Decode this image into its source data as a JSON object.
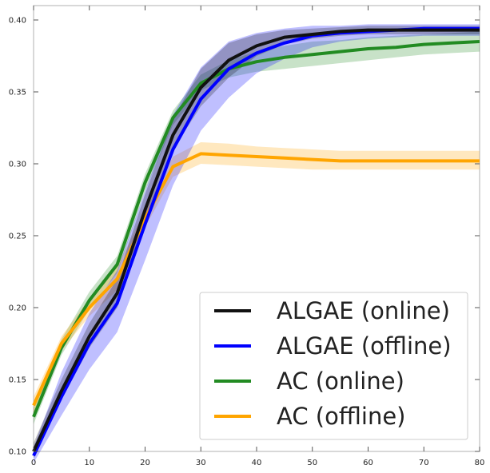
{
  "chart_data": {
    "type": "line",
    "title": "",
    "xlabel": "",
    "ylabel": "",
    "xlim": [
      0,
      80
    ],
    "ylim": [
      0.1,
      0.41
    ],
    "xticks": [
      0,
      10,
      20,
      30,
      40,
      50,
      60,
      70,
      80
    ],
    "yticks": [
      0.1,
      0.15,
      0.2,
      0.25,
      0.3,
      0.35,
      0.4
    ],
    "xtick_labels": [
      "0",
      "10",
      "20",
      "30",
      "40",
      "50",
      "60",
      "70",
      "80"
    ],
    "ytick_labels": [
      "0.10",
      "0.15",
      "0.20",
      "0.25",
      "0.30",
      "0.35",
      "0.40"
    ],
    "grid": false,
    "legend_position": "bottom-right",
    "x": [
      0,
      5,
      10,
      15,
      20,
      25,
      30,
      35,
      40,
      45,
      50,
      55,
      60,
      65,
      70,
      75,
      80
    ],
    "series": [
      {
        "name": "ALGAE (online)",
        "color": "#111111",
        "values": [
          0.1,
          0.142,
          0.18,
          0.21,
          0.268,
          0.32,
          0.353,
          0.372,
          0.382,
          0.388,
          0.39,
          0.392,
          0.393,
          0.393,
          0.393,
          0.393,
          0.393
        ],
        "lower": [
          0.095,
          0.136,
          0.172,
          0.2,
          0.258,
          0.31,
          0.34,
          0.36,
          0.375,
          0.383,
          0.387,
          0.389,
          0.39,
          0.39,
          0.39,
          0.39,
          0.39
        ],
        "upper": [
          0.106,
          0.15,
          0.189,
          0.22,
          0.279,
          0.331,
          0.366,
          0.384,
          0.39,
          0.393,
          0.394,
          0.395,
          0.396,
          0.396,
          0.396,
          0.396,
          0.396
        ]
      },
      {
        "name": "ALGAE (offline)",
        "color": "#0000ff",
        "values": [
          0.097,
          0.138,
          0.175,
          0.203,
          0.258,
          0.31,
          0.345,
          0.366,
          0.377,
          0.384,
          0.389,
          0.391,
          0.392,
          0.393,
          0.394,
          0.394,
          0.394
        ],
        "lower": [
          0.092,
          0.125,
          0.157,
          0.183,
          0.233,
          0.285,
          0.323,
          0.346,
          0.363,
          0.373,
          0.381,
          0.385,
          0.387,
          0.388,
          0.389,
          0.389,
          0.389
        ],
        "upper": [
          0.103,
          0.155,
          0.196,
          0.226,
          0.281,
          0.334,
          0.367,
          0.385,
          0.391,
          0.394,
          0.396,
          0.396,
          0.397,
          0.397,
          0.397,
          0.397,
          0.397
        ]
      },
      {
        "name": "AC (online)",
        "color": "#228b22",
        "values": [
          0.124,
          0.172,
          0.205,
          0.23,
          0.287,
          0.332,
          0.356,
          0.366,
          0.371,
          0.374,
          0.376,
          0.378,
          0.38,
          0.381,
          0.383,
          0.384,
          0.385
        ],
        "lower": [
          0.119,
          0.167,
          0.199,
          0.224,
          0.281,
          0.327,
          0.351,
          0.36,
          0.364,
          0.366,
          0.368,
          0.37,
          0.372,
          0.374,
          0.376,
          0.377,
          0.378
        ],
        "upper": [
          0.13,
          0.178,
          0.211,
          0.236,
          0.293,
          0.337,
          0.362,
          0.372,
          0.378,
          0.382,
          0.385,
          0.386,
          0.388,
          0.389,
          0.39,
          0.391,
          0.392
        ]
      },
      {
        "name": "AC (offline)",
        "color": "#ffa500",
        "values": [
          0.132,
          0.175,
          0.2,
          0.22,
          0.262,
          0.298,
          0.307,
          0.306,
          0.305,
          0.304,
          0.303,
          0.302,
          0.302,
          0.302,
          0.302,
          0.302,
          0.302
        ],
        "lower": [
          0.126,
          0.17,
          0.194,
          0.212,
          0.256,
          0.291,
          0.3,
          0.299,
          0.298,
          0.297,
          0.296,
          0.296,
          0.296,
          0.296,
          0.296,
          0.296,
          0.296
        ],
        "upper": [
          0.138,
          0.18,
          0.206,
          0.228,
          0.268,
          0.305,
          0.315,
          0.314,
          0.312,
          0.311,
          0.31,
          0.309,
          0.309,
          0.309,
          0.309,
          0.309,
          0.309
        ]
      }
    ]
  }
}
